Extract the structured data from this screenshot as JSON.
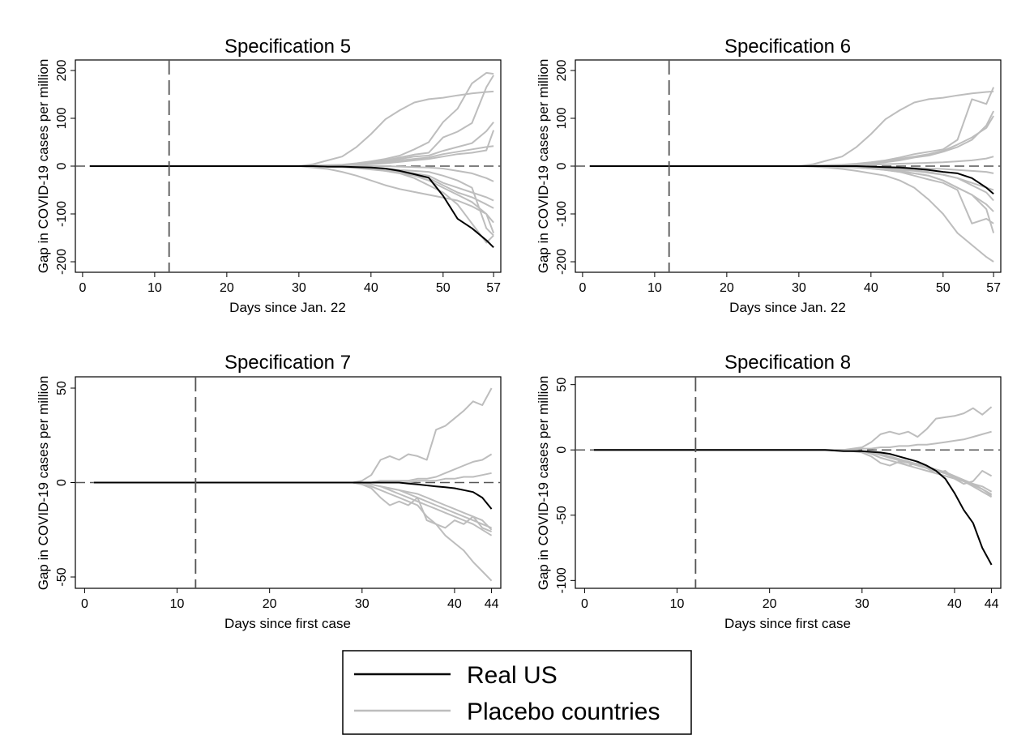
{
  "legend": {
    "items": [
      {
        "label": "Real US",
        "color": "#000000"
      },
      {
        "label": "Placebo countries",
        "color": "#bdbdbd"
      }
    ]
  },
  "colors": {
    "real": "#000000",
    "placebo": "#bdbdbd",
    "reference": "#555555"
  },
  "chart_data": [
    {
      "type": "line",
      "title": "Specification 5",
      "xlabel": "Days since Jan. 22",
      "ylabel": "Gap in COVID-19 cases per million",
      "xlim": [
        -1,
        58
      ],
      "ylim": [
        -222,
        222
      ],
      "xticks": [
        0,
        10,
        20,
        30,
        40,
        50,
        57
      ],
      "yticks": [
        -200,
        -100,
        0,
        100,
        200
      ],
      "vline": 12,
      "hline": 0,
      "x": [
        1,
        30,
        32,
        34,
        36,
        38,
        40,
        42,
        44,
        46,
        48,
        50,
        52,
        54,
        56,
        57
      ],
      "real": [
        0,
        0,
        0,
        -1,
        -1,
        -2,
        -3,
        -5,
        -10,
        -17,
        -24,
        -62,
        -110,
        -130,
        -155,
        -170
      ],
      "placebo": [
        [
          0,
          0,
          4,
          12,
          20,
          40,
          67,
          98,
          117,
          133,
          140,
          143,
          148,
          152,
          155,
          156
        ],
        [
          0,
          0,
          1,
          2,
          3,
          6,
          10,
          15,
          22,
          35,
          50,
          92,
          120,
          173,
          195,
          193
        ],
        [
          0,
          0,
          1,
          1,
          2,
          4,
          8,
          12,
          18,
          24,
          28,
          60,
          72,
          90,
          165,
          190
        ],
        [
          0,
          0,
          1,
          1,
          2,
          3,
          6,
          10,
          15,
          20,
          22,
          32,
          40,
          48,
          73,
          92
        ],
        [
          0,
          0,
          1,
          1,
          2,
          3,
          5,
          8,
          12,
          15,
          18,
          25,
          30,
          35,
          40,
          42
        ],
        [
          0,
          0,
          0,
          0,
          1,
          2,
          4,
          6,
          9,
          12,
          15,
          20,
          25,
          28,
          33,
          75
        ],
        [
          0,
          0,
          0,
          0,
          0,
          0,
          0,
          0,
          -1,
          -2,
          -3,
          -5,
          -10,
          -15,
          -25,
          -32
        ],
        [
          0,
          0,
          0,
          0,
          -1,
          -2,
          -4,
          -6,
          -10,
          -15,
          -20,
          -35,
          -45,
          -55,
          -65,
          -72
        ],
        [
          0,
          0,
          0,
          -1,
          -2,
          -3,
          -5,
          -8,
          -12,
          -18,
          -25,
          -40,
          -55,
          -65,
          -80,
          -88
        ],
        [
          0,
          0,
          0,
          -1,
          -2,
          -4,
          -7,
          -10,
          -15,
          -20,
          -30,
          -45,
          -60,
          -75,
          -100,
          -118
        ],
        [
          0,
          0,
          0,
          0,
          -1,
          -2,
          -3,
          -5,
          -8,
          -10,
          -12,
          -20,
          -30,
          -45,
          -130,
          -145
        ],
        [
          0,
          0,
          0,
          0,
          -1,
          -2,
          -5,
          -10,
          -15,
          -25,
          -40,
          -55,
          -80,
          -120,
          -160,
          -145
        ],
        [
          0,
          0,
          -3,
          -6,
          -12,
          -20,
          -30,
          -40,
          -48,
          -54,
          -60,
          -66,
          -72,
          -84,
          -100,
          -140
        ]
      ]
    },
    {
      "type": "line",
      "title": "Specification 6",
      "xlabel": "Days since Jan. 22",
      "ylabel": "Gap in COVID-19 cases per million",
      "xlim": [
        -1,
        58
      ],
      "ylim": [
        -222,
        222
      ],
      "xticks": [
        0,
        10,
        20,
        30,
        40,
        50,
        57
      ],
      "yticks": [
        -200,
        -100,
        0,
        100,
        200
      ],
      "vline": 12,
      "hline": 0,
      "x": [
        1,
        30,
        32,
        34,
        36,
        38,
        40,
        42,
        44,
        46,
        48,
        50,
        52,
        54,
        56,
        57
      ],
      "real": [
        0,
        0,
        0,
        0,
        0,
        0,
        -1,
        -2,
        -3,
        -5,
        -8,
        -12,
        -15,
        -25,
        -45,
        -58
      ],
      "placebo": [
        [
          0,
          0,
          4,
          12,
          20,
          40,
          67,
          98,
          117,
          133,
          140,
          143,
          148,
          152,
          155,
          156
        ],
        [
          0,
          0,
          1,
          2,
          3,
          5,
          8,
          12,
          18,
          25,
          30,
          35,
          55,
          140,
          130,
          165
        ],
        [
          0,
          0,
          1,
          1,
          2,
          4,
          6,
          10,
          15,
          20,
          25,
          32,
          45,
          60,
          80,
          105
        ],
        [
          0,
          0,
          1,
          1,
          2,
          3,
          5,
          8,
          12,
          18,
          22,
          30,
          40,
          55,
          85,
          115
        ],
        [
          0,
          0,
          0,
          0,
          1,
          2,
          3,
          4,
          5,
          6,
          7,
          8,
          10,
          12,
          16,
          20
        ],
        [
          0,
          0,
          0,
          0,
          0,
          0,
          -1,
          -2,
          -3,
          -4,
          -5,
          -6,
          -8,
          -10,
          -12,
          -15
        ],
        [
          0,
          0,
          0,
          0,
          -1,
          -2,
          -3,
          -5,
          -8,
          -10,
          -14,
          -18,
          -25,
          -35,
          -45,
          -50
        ],
        [
          0,
          0,
          0,
          -1,
          -2,
          -3,
          -5,
          -8,
          -12,
          -15,
          -20,
          -30,
          -45,
          -60,
          -80,
          -95
        ],
        [
          0,
          0,
          0,
          0,
          -1,
          -3,
          -5,
          -8,
          -12,
          -20,
          -28,
          -35,
          -50,
          -120,
          -110,
          -120
        ],
        [
          0,
          0,
          0,
          0,
          -1,
          -2,
          -4,
          -6,
          -10,
          -15,
          -20,
          -30,
          -45,
          -60,
          -90,
          -140
        ],
        [
          0,
          0,
          -1,
          -3,
          -6,
          -10,
          -15,
          -20,
          -30,
          -45,
          -70,
          -100,
          -140,
          -165,
          -190,
          -200
        ],
        [
          0,
          0,
          0,
          0,
          0,
          -1,
          -2,
          -3,
          -5,
          -8,
          -12,
          -18,
          -25,
          -40,
          -55,
          -72
        ]
      ]
    },
    {
      "type": "line",
      "title": "Specification 7",
      "xlabel": "Days since first case",
      "ylabel": "Gap in COVID-19 cases per million",
      "xlim": [
        -1,
        45
      ],
      "ylim": [
        -56,
        56
      ],
      "xticks": [
        0,
        10,
        20,
        30,
        40,
        44
      ],
      "yticks": [
        -50,
        0,
        50
      ],
      "vline": 12,
      "hline": 0,
      "x": [
        1,
        29,
        30,
        31,
        32,
        33,
        34,
        35,
        36,
        37,
        38,
        39,
        40,
        41,
        42,
        43,
        44
      ],
      "real": [
        0,
        0,
        0,
        0,
        0,
        0,
        0,
        -0.5,
        -1,
        -1.5,
        -2,
        -2.5,
        -3,
        -4,
        -5,
        -8,
        -14
      ],
      "placebo": [
        [
          0,
          0,
          1,
          4,
          12,
          14,
          12,
          15,
          14,
          12,
          28,
          30,
          34,
          38,
          43,
          41,
          50
        ],
        [
          0,
          0,
          0,
          0,
          1,
          1,
          1,
          1,
          2,
          2,
          3,
          5,
          7,
          9,
          11,
          12,
          15
        ],
        [
          0,
          0,
          0,
          0,
          0,
          0,
          0,
          0,
          1,
          1,
          1,
          2,
          2,
          3,
          3,
          4,
          5
        ],
        [
          0,
          0,
          0,
          -1,
          -2,
          -3,
          -4,
          -5,
          -6,
          -8,
          -10,
          -12,
          -14,
          -16,
          -18,
          -20,
          -25
        ],
        [
          0,
          0,
          0,
          -1,
          -2,
          -4,
          -6,
          -8,
          -10,
          -12,
          -14,
          -16,
          -18,
          -20,
          -22,
          -25,
          -28
        ],
        [
          0,
          0,
          -1,
          -3,
          -8,
          -12,
          -10,
          -12,
          -8,
          -20,
          -22,
          -24,
          -20,
          -22,
          -18,
          -24,
          -26
        ],
        [
          0,
          0,
          -1,
          -2,
          -4,
          -6,
          -8,
          -10,
          -12,
          -18,
          -22,
          -28,
          -32,
          -36,
          -42,
          -47,
          -52
        ],
        [
          0,
          0,
          0,
          -1,
          -2,
          -3,
          -4,
          -6,
          -8,
          -10,
          -12,
          -14,
          -16,
          -18,
          -20,
          -22,
          -24
        ]
      ]
    },
    {
      "type": "line",
      "title": "Specification 8",
      "xlabel": "Days since first case",
      "ylabel": "Gap in COVID-19 cases per million",
      "xlim": [
        -1,
        45
      ],
      "ylim": [
        -106,
        56
      ],
      "xticks": [
        0,
        10,
        20,
        30,
        40,
        44
      ],
      "yticks": [
        -100,
        -50,
        0,
        50
      ],
      "vline": 12,
      "hline": 0,
      "x": [
        1,
        26,
        28,
        30,
        31,
        32,
        33,
        34,
        35,
        36,
        37,
        38,
        39,
        40,
        41,
        42,
        43,
        44
      ],
      "real": [
        0,
        0,
        -1,
        -1,
        -1.5,
        -2,
        -3,
        -5,
        -7,
        -9,
        -12,
        -16,
        -22,
        -33,
        -46,
        -56,
        -75,
        -88
      ],
      "placebo": [
        [
          0,
          0,
          0,
          2,
          6,
          12,
          14,
          12,
          14,
          10,
          16,
          24,
          25,
          26,
          28,
          32,
          27,
          33
        ],
        [
          0,
          0,
          0,
          1,
          1,
          2,
          2,
          3,
          3,
          4,
          4,
          5,
          6,
          7,
          8,
          10,
          12,
          14
        ],
        [
          0,
          0,
          0,
          -1,
          -3,
          -6,
          -8,
          -10,
          -12,
          -14,
          -16,
          -18,
          -20,
          -22,
          -24,
          -26,
          -28,
          -32
        ],
        [
          0,
          0,
          0,
          -2,
          -5,
          -10,
          -12,
          -9,
          -12,
          -10,
          -14,
          -18,
          -16,
          -22,
          -26,
          -24,
          -16,
          -20
        ],
        [
          0,
          0,
          0,
          -1,
          -2,
          -4,
          -6,
          -8,
          -10,
          -12,
          -14,
          -16,
          -18,
          -21,
          -24,
          -27,
          -30,
          -34
        ],
        [
          0,
          0,
          0,
          -1,
          -2,
          -3,
          -5,
          -7,
          -9,
          -11,
          -13,
          -15,
          -17,
          -20,
          -23,
          -26,
          -30,
          -35
        ],
        [
          0,
          0,
          0,
          -1,
          -2,
          -3,
          -5,
          -7,
          -9,
          -11,
          -14,
          -16,
          -18,
          -21,
          -24,
          -28,
          -32,
          -36
        ]
      ]
    }
  ]
}
